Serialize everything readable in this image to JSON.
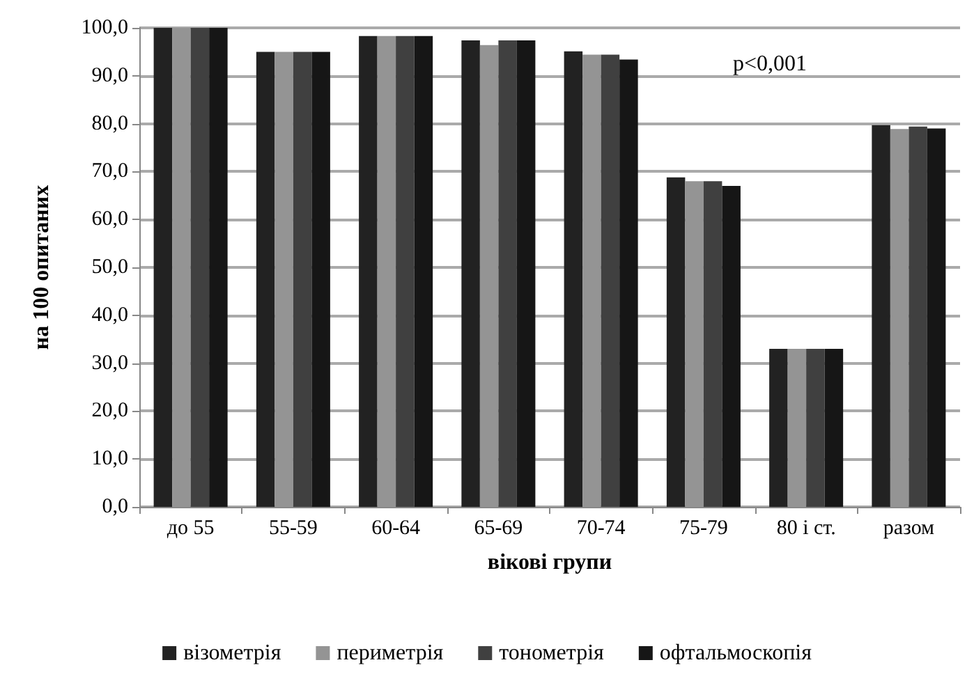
{
  "chart_data": {
    "type": "bar",
    "xlabel": "вікові групи",
    "ylabel": "на 100 опитаних",
    "categories": [
      "до 55",
      "55-59",
      "60-64",
      "65-69",
      "70-74",
      "75-79",
      "80 і ст.",
      "разом"
    ],
    "series": [
      {
        "name": "візометрія",
        "color": "#222222",
        "values": [
          100.0,
          95.0,
          98.3,
          97.4,
          95.1,
          68.8,
          33.0,
          79.7
        ]
      },
      {
        "name": "периметрія",
        "color": "#949494",
        "values": [
          100.0,
          95.0,
          98.3,
          96.4,
          94.4,
          68.0,
          33.0,
          78.9
        ]
      },
      {
        "name": "тонометрія",
        "color": "#404040",
        "values": [
          100.0,
          95.0,
          98.3,
          97.4,
          94.4,
          68.0,
          33.0,
          79.4
        ]
      },
      {
        "name": "офтальмоскопія",
        "color": "#161616",
        "values": [
          100.0,
          95.0,
          98.3,
          97.4,
          93.4,
          67.0,
          33.0,
          79.0
        ]
      }
    ],
    "ylim": [
      0,
      100
    ],
    "yticks": [
      {
        "value": 0,
        "label": "0,0"
      },
      {
        "value": 10,
        "label": "10,0"
      },
      {
        "value": 20,
        "label": "20,0"
      },
      {
        "value": 30,
        "label": "30,0"
      },
      {
        "value": 40,
        "label": "40,0"
      },
      {
        "value": 50,
        "label": "50,0"
      },
      {
        "value": 60,
        "label": "60,0"
      },
      {
        "value": 70,
        "label": "70,0"
      },
      {
        "value": 80,
        "label": "80,0"
      },
      {
        "value": 90,
        "label": "90,0"
      },
      {
        "value": 100,
        "label": "100,0"
      }
    ],
    "grid": "y",
    "legend": "bottom",
    "annotations": [
      "p<0,001"
    ]
  }
}
